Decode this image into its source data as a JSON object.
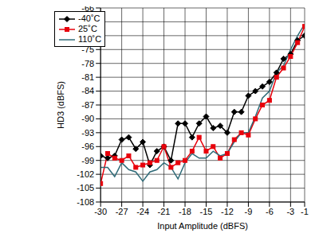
{
  "chart_data": {
    "type": "line",
    "x_label": "Input Amplitude (dBFS)",
    "y_label": "HD3 (dBFS)",
    "x": [
      -30,
      -29,
      -28,
      -27,
      -26,
      -25,
      -24,
      -23,
      -22,
      -21,
      -20,
      -19,
      -18,
      -17,
      -16,
      -15,
      -14,
      -13,
      -12,
      -11,
      -10,
      -9,
      -8,
      -7,
      -6,
      -5,
      -4,
      -3,
      -2,
      -1
    ],
    "xlim": [
      -30,
      -1
    ],
    "xticks": [
      -30,
      -27,
      -24,
      -21,
      -18,
      -15,
      -12,
      -9,
      -6,
      -3,
      -1
    ],
    "ylim": [
      -108,
      -66
    ],
    "yticks": [
      -108,
      -105,
      -102,
      -99,
      -96,
      -93,
      -90,
      -87,
      -84,
      -81,
      -78,
      -75,
      -72,
      -69,
      -66
    ],
    "grid": true,
    "legend": "top-left",
    "series": [
      {
        "name": "-40˚C",
        "color": "#000000",
        "marker": "diamond",
        "values": [
          -98,
          -98.5,
          -98,
          -94.5,
          -94,
          -96.5,
          -95,
          -100,
          -97,
          -96,
          -99,
          -91,
          -91,
          -94,
          -91,
          -89.5,
          -92,
          -91.5,
          -93,
          -88.5,
          -88.5,
          -85,
          -84,
          -83,
          -82,
          -80,
          -77,
          -76,
          -73,
          -72
        ]
      },
      {
        "name": "25˚C",
        "color": "#e8000b",
        "marker": "square",
        "values": [
          -104,
          -97.5,
          -98.5,
          -99,
          -98,
          -100.5,
          -100,
          -99.5,
          -99,
          -96,
          -100.5,
          -99.5,
          -99,
          -97,
          -94,
          -97,
          -96,
          -98.5,
          -97.5,
          -94.5,
          -93,
          -93.5,
          -90,
          -87,
          -86,
          -81,
          -79,
          -76.5,
          -73.5,
          -70
        ]
      },
      {
        "name": "110˚C",
        "color": "#2f6b78",
        "marker": "none",
        "values": [
          -100.5,
          -100.5,
          -102.5,
          -99.5,
          -101,
          -101.5,
          -103.5,
          -101.5,
          -101,
          -99.5,
          -100.5,
          -103,
          -99.5,
          -97.5,
          -98.5,
          -98.5,
          -97,
          -98,
          -97.5,
          -95,
          -93,
          -93,
          -89.5,
          -85.5,
          -84,
          -80,
          -78.5,
          -75,
          -72,
          -69.5
        ]
      }
    ]
  }
}
